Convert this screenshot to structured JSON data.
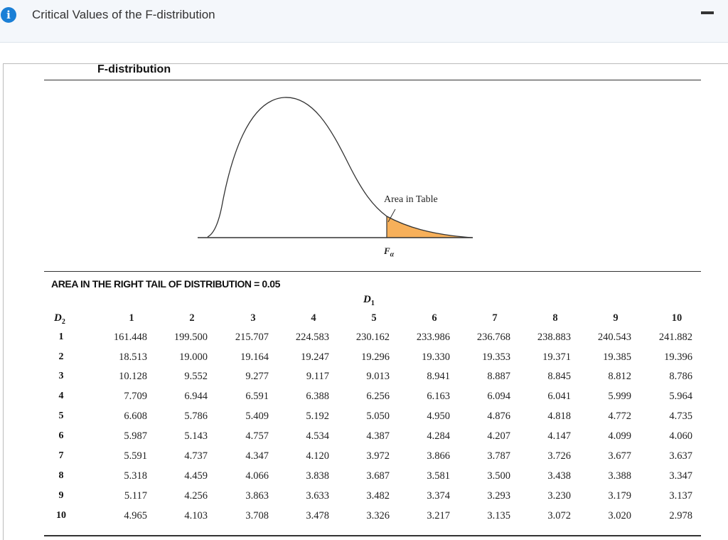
{
  "header": {
    "info_icon": "info-icon",
    "title": "Critical Values of the F-distribution",
    "minimize_icon": "minus-icon"
  },
  "figure": {
    "title": "F-distribution",
    "area_label": "Area in Table",
    "critical_value_label": "F",
    "critical_value_sub": "α",
    "shade_color": "#f7b05a"
  },
  "table": {
    "heading": "AREA IN THE RIGHT TAIL OF DISTRIBUTION = 0.05",
    "d1_label": "D",
    "d1_sub": "1",
    "d2_label": "D",
    "d2_sub": "2",
    "columns": [
      "1",
      "2",
      "3",
      "4",
      "5",
      "6",
      "7",
      "8",
      "9",
      "10"
    ],
    "rows": [
      {
        "d2": "1",
        "values": [
          "161.448",
          "199.500",
          "215.707",
          "224.583",
          "230.162",
          "233.986",
          "236.768",
          "238.883",
          "240.543",
          "241.882"
        ]
      },
      {
        "d2": "2",
        "values": [
          "18.513",
          "19.000",
          "19.164",
          "19.247",
          "19.296",
          "19.330",
          "19.353",
          "19.371",
          "19.385",
          "19.396"
        ]
      },
      {
        "d2": "3",
        "values": [
          "10.128",
          "9.552",
          "9.277",
          "9.117",
          "9.013",
          "8.941",
          "8.887",
          "8.845",
          "8.812",
          "8.786"
        ]
      },
      {
        "d2": "4",
        "values": [
          "7.709",
          "6.944",
          "6.591",
          "6.388",
          "6.256",
          "6.163",
          "6.094",
          "6.041",
          "5.999",
          "5.964"
        ]
      },
      {
        "d2": "5",
        "values": [
          "6.608",
          "5.786",
          "5.409",
          "5.192",
          "5.050",
          "4.950",
          "4.876",
          "4.818",
          "4.772",
          "4.735"
        ]
      },
      {
        "d2": "6",
        "values": [
          "5.987",
          "5.143",
          "4.757",
          "4.534",
          "4.387",
          "4.284",
          "4.207",
          "4.147",
          "4.099",
          "4.060"
        ]
      },
      {
        "d2": "7",
        "values": [
          "5.591",
          "4.737",
          "4.347",
          "4.120",
          "3.972",
          "3.866",
          "3.787",
          "3.726",
          "3.677",
          "3.637"
        ]
      },
      {
        "d2": "8",
        "values": [
          "5.318",
          "4.459",
          "4.066",
          "3.838",
          "3.687",
          "3.581",
          "3.500",
          "3.438",
          "3.388",
          "3.347"
        ]
      },
      {
        "d2": "9",
        "values": [
          "5.117",
          "4.256",
          "3.863",
          "3.633",
          "3.482",
          "3.374",
          "3.293",
          "3.230",
          "3.179",
          "3.137"
        ]
      },
      {
        "d2": "10",
        "values": [
          "4.965",
          "4.103",
          "3.708",
          "3.478",
          "3.326",
          "3.217",
          "3.135",
          "3.072",
          "3.020",
          "2.978"
        ]
      }
    ]
  }
}
